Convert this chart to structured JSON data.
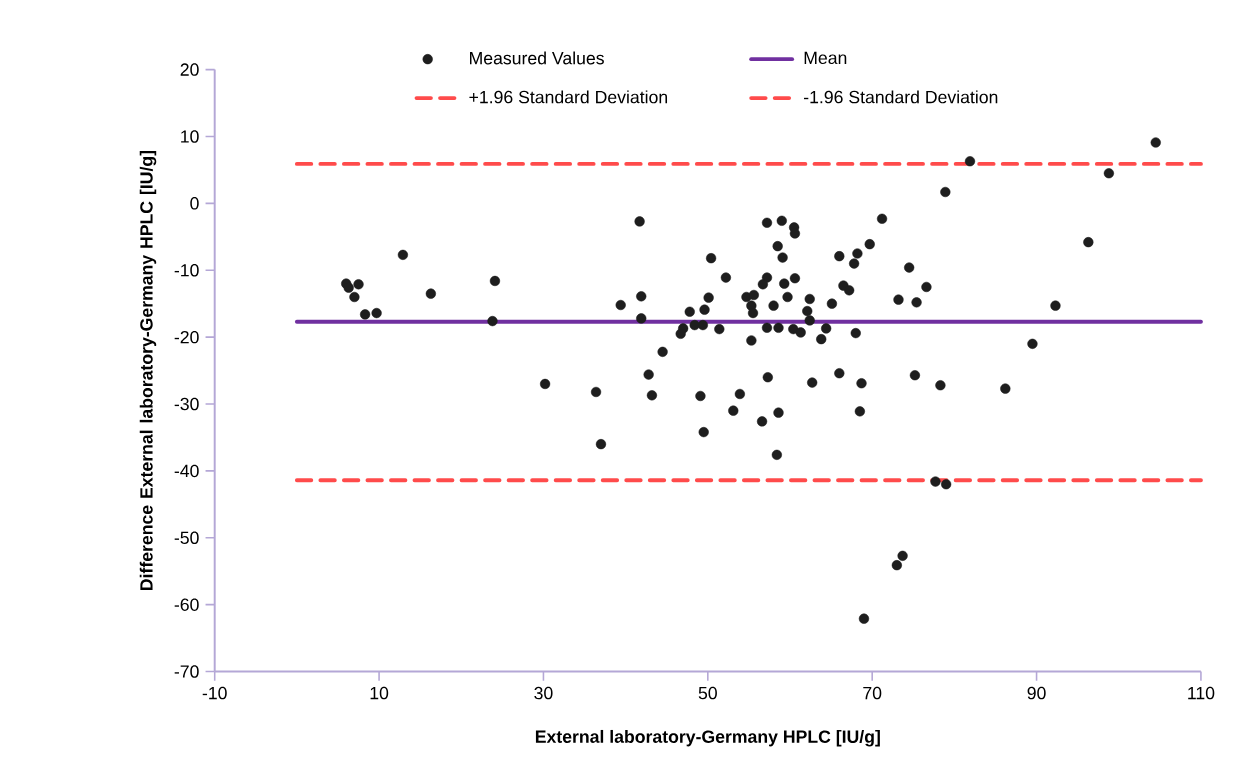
{
  "chart_data": {
    "type": "scatter",
    "xlabel": "External laboratory-Germany HPLC [IU/g]",
    "ylabel": "Difference External laboratory-Germany HPLC [IU/g]",
    "xlim": [
      -10,
      110
    ],
    "xticks": [
      -10,
      10,
      30,
      50,
      70,
      90,
      110
    ],
    "ylim": [
      -70,
      20
    ],
    "yticks": [
      -70,
      -60,
      -50,
      -40,
      -30,
      -20,
      -10,
      0,
      10,
      20
    ],
    "legend": "top",
    "series": [
      {
        "name": "Measured Values",
        "color": "#1e1e1e",
        "x": [
          6.0,
          6.3,
          7.5,
          7.0,
          8.3,
          9.7,
          12.9,
          16.3,
          23.8,
          24.1,
          30.2,
          36.4,
          37.0,
          39.4,
          41.7,
          41.9,
          41.9,
          42.8,
          43.2,
          44.5,
          50.4,
          52.2,
          50.1,
          47.8,
          49.6,
          47.0,
          46.7,
          48.4,
          49.4,
          51.4,
          49.1,
          49.5,
          53.9,
          53.1,
          56.6,
          58.6,
          58.4,
          57.3,
          62.7,
          66.0,
          68.7,
          68.5,
          75.2,
          78.3,
          57.2,
          59.0,
          60.5,
          60.6,
          58.5,
          59.1,
          57.2,
          56.7,
          59.3,
          60.6,
          54.7,
          55.6,
          55.3,
          55.5,
          58.0,
          59.7,
          62.4,
          62.1,
          62.4,
          65.1,
          57.2,
          58.6,
          60.4,
          61.3,
          64.4,
          63.8,
          55.3,
          68.0,
          66.0,
          68.2,
          67.8,
          69.7,
          71.2,
          66.5,
          67.2,
          74.5,
          73.2,
          75.4,
          76.6,
          81.9,
          78.9,
          104.5,
          98.8,
          96.3,
          92.3,
          89.5,
          86.2,
          77.7,
          79.0,
          73.7,
          73.0,
          69.0
        ],
        "values": [
          -12.0,
          -12.6,
          -12.1,
          -14.0,
          -16.6,
          -16.4,
          -7.7,
          -13.5,
          -17.6,
          -11.6,
          -27.0,
          -28.2,
          -36.0,
          -15.2,
          -2.7,
          -13.9,
          -17.2,
          -25.6,
          -28.7,
          -22.2,
          -8.2,
          -11.1,
          -14.1,
          -16.2,
          -15.9,
          -18.7,
          -19.5,
          -18.2,
          -18.2,
          -18.8,
          -28.8,
          -34.2,
          -28.5,
          -31.0,
          -32.6,
          -31.3,
          -37.6,
          -26.0,
          -26.8,
          -25.4,
          -26.9,
          -31.1,
          -25.7,
          -27.2,
          -2.9,
          -2.6,
          -3.6,
          -4.5,
          -6.4,
          -8.1,
          -11.1,
          -12.1,
          -12.0,
          -11.2,
          -14.0,
          -13.7,
          -15.3,
          -16.4,
          -15.3,
          -14.0,
          -14.3,
          -16.1,
          -17.5,
          -15.0,
          -18.6,
          -18.6,
          -18.8,
          -19.3,
          -18.7,
          -20.3,
          -20.5,
          -19.4,
          -7.9,
          -7.5,
          -9.0,
          -6.1,
          -2.3,
          -12.3,
          -13.0,
          -9.6,
          -14.4,
          -14.8,
          -12.5,
          6.3,
          1.7,
          9.1,
          4.5,
          -5.8,
          -15.3,
          -21.0,
          -27.7,
          -41.6,
          -42.0,
          -52.7,
          -54.1,
          -62.1
        ]
      },
      {
        "name": "Mean",
        "type": "line",
        "marker": "none",
        "line_style": "solid",
        "color": "#7030a0",
        "x": [
          0,
          110
        ],
        "values": [
          -17.7,
          -17.7
        ]
      },
      {
        "name": "+1.96 Standard Deviation",
        "type": "line",
        "marker": "none",
        "line_style": "dashed",
        "color": "#ff4b4b",
        "x": [
          0,
          110
        ],
        "values": [
          5.9,
          5.9
        ]
      },
      {
        "name": "-1.96 Standard Deviation",
        "type": "line",
        "marker": "none",
        "line_style": "dashed",
        "color": "#ff4b4b",
        "x": [
          0,
          110
        ],
        "values": [
          -41.4,
          -41.4
        ]
      }
    ]
  }
}
